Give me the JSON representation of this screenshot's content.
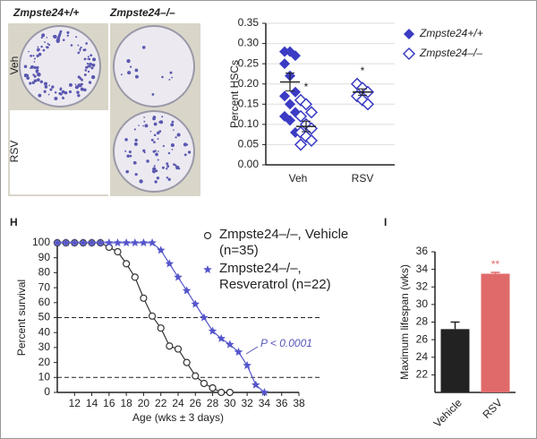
{
  "image_panel": {
    "column_labels": [
      "Zmpste24+/+",
      "Zmpste24–/–"
    ],
    "row_labels": [
      "Veh",
      "RSV"
    ]
  },
  "panel_labels": [
    "H",
    "I"
  ],
  "chart_data": [
    {
      "type": "strip",
      "ylabel": "Percent HSCs",
      "categories": [
        "Veh",
        "RSV"
      ],
      "ylim": [
        0,
        0.35
      ],
      "yticks": [
        {
          "value": 0,
          "label": "0.00"
        },
        {
          "value": 0.05,
          "label": "0.05"
        },
        {
          "value": 0.1,
          "label": "0.10"
        },
        {
          "value": 0.15,
          "label": "0.15"
        },
        {
          "value": 0.2,
          "label": "0.20"
        },
        {
          "value": 0.25,
          "label": "0.25"
        },
        {
          "value": 0.3,
          "label": "0.30"
        },
        {
          "value": 0.35,
          "label": "0.35"
        }
      ],
      "grid": true,
      "legend": "right",
      "series": [
        {
          "name": "Zmpste24+/+",
          "color": "#3b3bc4",
          "marker": "filled-diamond",
          "values": [
            [
              0.28,
              0.28,
              0.27,
              0.25,
              0.22,
              0.18,
              0.17,
              0.15,
              0.13,
              0.12,
              0.11,
              0.08
            ],
            null
          ],
          "means": [
            0.205,
            null
          ],
          "errors": [
            0.022,
            null
          ]
        },
        {
          "name": "Zmpste24–/–",
          "color": "#3b3bc4",
          "marker": "open-diamond",
          "values": [
            [
              0.16,
              0.15,
              0.13,
              0.12,
              0.1,
              0.09,
              0.08,
              0.07,
              0.06,
              0.05
            ],
            [
              0.2,
              0.19,
              0.18,
              0.17,
              0.16,
              0.15
            ]
          ],
          "means": [
            0.095,
            0.18
          ],
          "errors": [
            0.013,
            0.008
          ],
          "significance_labels": [
            "*",
            "*"
          ]
        }
      ]
    },
    {
      "type": "line",
      "xlabel": "Age (wks ± 3 days)",
      "ylabel": "Percent survival",
      "x": [
        10,
        11,
        12,
        13,
        14,
        15,
        16,
        17,
        18,
        19,
        20,
        21,
        22,
        23,
        24,
        25,
        26,
        27,
        28,
        29,
        30,
        31,
        32,
        33,
        34
      ],
      "xlim": [
        10,
        38
      ],
      "xticks": [
        12,
        14,
        16,
        18,
        20,
        22,
        24,
        26,
        28,
        30,
        32,
        34,
        36,
        38
      ],
      "ylim": [
        0,
        100
      ],
      "yticks": [
        0,
        10,
        20,
        30,
        40,
        50,
        60,
        70,
        80,
        90,
        100
      ],
      "reference_lines": [
        50,
        10
      ],
      "annotation": {
        "text": "P < 0.0001",
        "color": "#5555bb"
      },
      "series": [
        {
          "name": "Zmpste24–/–, Vehicle (n=35)",
          "color": "#333333",
          "marker": "open-circle",
          "values": [
            100,
            100,
            100,
            100,
            100,
            100,
            97,
            94,
            86,
            77,
            63,
            51,
            43,
            31,
            29,
            20,
            11,
            6,
            3,
            0,
            0,
            null,
            null,
            null,
            null
          ]
        },
        {
          "name": "Zmpste24–/–, Resveratrol (n=22)",
          "color": "#5555cc",
          "marker": "star",
          "values": [
            100,
            100,
            100,
            100,
            100,
            100,
            100,
            100,
            100,
            100,
            100,
            100,
            95,
            86,
            77,
            68,
            59,
            50,
            41,
            36,
            32,
            27,
            18,
            5,
            0
          ]
        }
      ]
    },
    {
      "type": "bar",
      "ylabel": "Maximum lifespan (wks)",
      "categories": [
        "Vehicle",
        "RSV"
      ],
      "values": [
        27.2,
        33.5
      ],
      "errors": [
        0.8,
        0.15
      ],
      "colors": [
        "#222222",
        "#e06a6a"
      ],
      "ylim": [
        20,
        36
      ],
      "yticks": [
        22,
        24,
        26,
        28,
        30,
        32,
        34,
        36
      ],
      "significance_labels": [
        null,
        "**"
      ]
    }
  ]
}
